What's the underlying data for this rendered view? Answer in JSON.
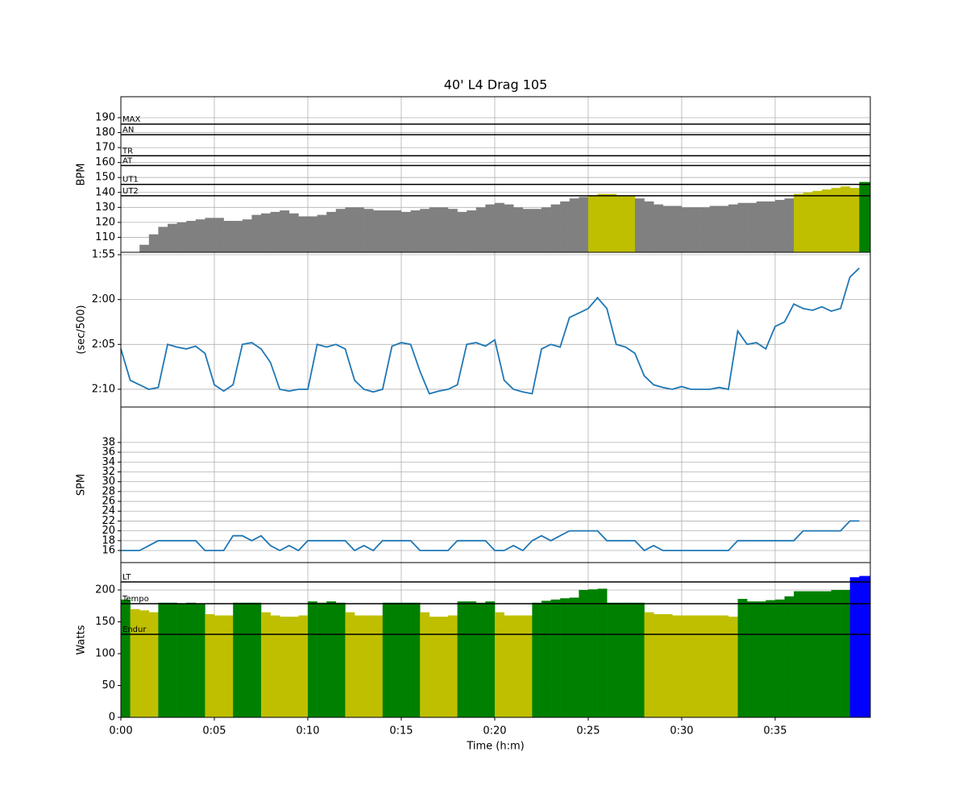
{
  "chart_data": [
    {
      "type": "bar",
      "title": "40' L4 Drag 105",
      "ylabel": "BPM",
      "color": "#808080",
      "x": [
        0,
        0.5,
        1,
        1.5,
        2,
        2.5,
        3,
        3.5,
        4,
        4.5,
        5,
        5.5,
        6,
        6.5,
        7,
        7.5,
        8,
        8.5,
        9,
        9.5,
        10,
        10.5,
        11,
        11.5,
        12,
        12.5,
        13,
        13.5,
        14,
        14.5,
        15,
        15.5,
        16,
        16.5,
        17,
        17.5,
        18,
        18.5,
        19,
        19.5,
        20,
        20.5,
        21,
        21.5,
        22,
        22.5,
        23,
        23.5,
        24,
        24.5,
        25,
        25.5,
        26,
        26.5,
        27,
        27.5,
        28,
        28.5,
        29,
        29.5,
        30,
        30.5,
        31,
        31.5,
        32,
        32.5,
        33,
        33.5,
        34,
        34.5,
        35,
        35.5,
        36,
        36.5,
        37,
        37.5,
        38,
        38.5,
        39,
        39.5
      ],
      "values": [
        100,
        100,
        105,
        112,
        117,
        119,
        120,
        121,
        122,
        123,
        123,
        121,
        121,
        122,
        125,
        126,
        127,
        128,
        126,
        124,
        124,
        125,
        127,
        129,
        130,
        130,
        129,
        128,
        128,
        128,
        127,
        128,
        129,
        130,
        130,
        129,
        127,
        128,
        130,
        132,
        133,
        132,
        130,
        129,
        129,
        130,
        132,
        134,
        136,
        137,
        138,
        139,
        139,
        138,
        138,
        136,
        134,
        132,
        131,
        131,
        130,
        130,
        130,
        131,
        131,
        132,
        133,
        133,
        134,
        134,
        135,
        136,
        139,
        140,
        141,
        142,
        143,
        144,
        143,
        147
      ],
      "ylim": [
        100,
        204
      ],
      "yticks": [
        110,
        120,
        130,
        140,
        150,
        160,
        170,
        180,
        190
      ],
      "grid": true,
      "zones": [
        {
          "name": "UT2",
          "value": 137.8,
          "color": "#bfbf00"
        },
        {
          "name": "UT1",
          "value": 145.4,
          "color": "#008000"
        },
        {
          "name": "AT",
          "value": 158,
          "color": "#0000ff"
        },
        {
          "name": "TR",
          "value": 164.5,
          "color": "#800080"
        },
        {
          "name": "AN",
          "value": 178.6,
          "color": "#ff8c00"
        },
        {
          "name": "MAX",
          "value": 185.7,
          "color": "#ff0000"
        }
      ]
    },
    {
      "type": "line",
      "ylabel": "(sec/500)",
      "color": "#1f77b4",
      "x": [
        0,
        0.5,
        1,
        1.5,
        2,
        2.5,
        3,
        3.5,
        4,
        4.5,
        5,
        5.5,
        6,
        6.5,
        7,
        7.5,
        8,
        8.5,
        9,
        9.5,
        10,
        10.5,
        11,
        11.5,
        12,
        12.5,
        13,
        13.5,
        14,
        14.5,
        15,
        15.5,
        16,
        16.5,
        17,
        17.5,
        18,
        18.5,
        19,
        19.5,
        20,
        20.5,
        21,
        21.5,
        22,
        22.5,
        23,
        23.5,
        24,
        24.5,
        25,
        25.5,
        26,
        26.5,
        27,
        27.5,
        28,
        28.5,
        29,
        29.5,
        30,
        30.5,
        31,
        31.5,
        32,
        32.5,
        33,
        33.5,
        34,
        34.5,
        35,
        35.5,
        36,
        36.5,
        37,
        37.5,
        38,
        38.5,
        39,
        39.5
      ],
      "values": [
        125.5,
        129,
        129.5,
        130,
        129.8,
        125,
        125.3,
        125.5,
        125.2,
        126,
        129.5,
        130.2,
        129.5,
        125,
        124.8,
        125.5,
        127,
        130,
        130.2,
        130,
        130,
        125,
        125.3,
        125,
        125.5,
        129,
        130,
        130.3,
        130,
        125.2,
        124.8,
        125,
        128,
        130.5,
        130.2,
        130,
        129.5,
        125,
        124.8,
        125.2,
        124.5,
        129,
        130,
        130.3,
        130.5,
        125.5,
        125,
        125.3,
        122,
        121.5,
        121,
        119.8,
        121,
        125,
        125.3,
        126,
        128.5,
        129.5,
        129.8,
        130,
        129.7,
        130,
        130,
        130,
        129.8,
        130,
        123.5,
        125,
        124.8,
        125.5,
        123,
        122.5,
        120.5,
        121,
        121.2,
        120.8,
        121.3,
        121,
        117.5,
        116.5
      ],
      "ylim": [
        131.98,
        114.73
      ],
      "yticks": [
        {
          "value": 115,
          "label": "1:55"
        },
        {
          "value": 120,
          "label": "2:00"
        },
        {
          "value": 125,
          "label": "2:05"
        },
        {
          "value": 130,
          "label": "2:10"
        }
      ],
      "grid": true
    },
    {
      "type": "line",
      "ylabel": "SPM",
      "color": "#1f77b4",
      "x": [
        0,
        0.5,
        1,
        1.5,
        2,
        2.5,
        3,
        3.5,
        4,
        4.5,
        5,
        5.5,
        6,
        6.5,
        7,
        7.5,
        8,
        8.5,
        9,
        9.5,
        10,
        10.5,
        11,
        11.5,
        12,
        12.5,
        13,
        13.5,
        14,
        14.5,
        15,
        15.5,
        16,
        16.5,
        17,
        17.5,
        18,
        18.5,
        19,
        19.5,
        20,
        20.5,
        21,
        21.5,
        22,
        22.5,
        23,
        23.5,
        24,
        24.5,
        25,
        25.5,
        26,
        26.5,
        27,
        27.5,
        28,
        28.5,
        29,
        29.5,
        30,
        30.5,
        31,
        31.5,
        32,
        32.5,
        33,
        33.5,
        34,
        34.5,
        35,
        35.5,
        36,
        36.5,
        37,
        37.5,
        38,
        38.5,
        39,
        39.5
      ],
      "values": [
        16,
        16,
        16,
        17,
        18,
        18,
        18,
        18,
        18,
        16,
        16,
        16,
        19,
        19,
        18,
        19,
        17,
        16,
        17,
        16,
        18,
        18,
        18,
        18,
        18,
        16,
        17,
        16,
        18,
        18,
        18,
        18,
        16,
        16,
        16,
        16,
        18,
        18,
        18,
        18,
        16,
        16,
        17,
        16,
        18,
        19,
        18,
        19,
        20,
        20,
        20,
        20,
        18,
        18,
        18,
        18,
        16,
        17,
        16,
        16,
        16,
        16,
        16,
        16,
        16,
        16,
        18,
        18,
        18,
        18,
        18,
        18,
        18,
        20,
        20,
        20,
        20,
        20,
        22,
        22
      ],
      "ylim": [
        13.54,
        45.2
      ],
      "yticks": [
        16,
        18,
        20,
        22,
        24,
        26,
        28,
        30,
        32,
        34,
        36,
        38
      ],
      "grid": true
    },
    {
      "type": "bar",
      "ylabel": "Watts",
      "xlabel": "Time (h:m)",
      "color": "#808080",
      "x": [
        0,
        0.5,
        1,
        1.5,
        2,
        2.5,
        3,
        3.5,
        4,
        4.5,
        5,
        5.5,
        6,
        6.5,
        7,
        7.5,
        8,
        8.5,
        9,
        9.5,
        10,
        10.5,
        11,
        11.5,
        12,
        12.5,
        13,
        13.5,
        14,
        14.5,
        15,
        15.5,
        16,
        16.5,
        17,
        17.5,
        18,
        18.5,
        19,
        19.5,
        20,
        20.5,
        21,
        21.5,
        22,
        22.5,
        23,
        23.5,
        24,
        24.5,
        25,
        25.5,
        26,
        26.5,
        27,
        27.5,
        28,
        28.5,
        29,
        29.5,
        30,
        30.5,
        31,
        31.5,
        32,
        32.5,
        33,
        33.5,
        34,
        34.5,
        35,
        35.5,
        36,
        36.5,
        37,
        37.5,
        38,
        38.5,
        39,
        39.5
      ],
      "values": [
        185,
        170,
        168,
        165,
        180,
        180,
        179,
        180,
        179,
        162,
        160,
        160,
        180,
        180,
        180,
        165,
        160,
        158,
        158,
        160,
        182,
        180,
        182,
        180,
        165,
        160,
        160,
        160,
        180,
        180,
        180,
        180,
        165,
        158,
        158,
        160,
        182,
        182,
        180,
        182,
        165,
        160,
        160,
        160,
        180,
        183,
        185,
        187,
        188,
        200,
        201,
        202,
        180,
        180,
        180,
        180,
        165,
        162,
        162,
        160,
        160,
        160,
        160,
        160,
        160,
        158,
        186,
        182,
        182,
        184,
        185,
        190,
        198,
        198,
        198,
        198,
        200,
        200,
        220,
        222
      ],
      "ylim": [
        0,
        243
      ],
      "yticks": [
        0,
        50,
        100,
        150,
        200
      ],
      "grid": true,
      "xlim": [
        0,
        40.09
      ],
      "xticks": [
        {
          "value": 0,
          "label": "0:00"
        },
        {
          "value": 5,
          "label": "0:05"
        },
        {
          "value": 10,
          "label": "0:10"
        },
        {
          "value": 15,
          "label": "0:15"
        },
        {
          "value": 20,
          "label": "0:20"
        },
        {
          "value": 25,
          "label": "0:25"
        },
        {
          "value": 30,
          "label": "0:30"
        },
        {
          "value": 35,
          "label": "0:35"
        }
      ],
      "zones": [
        {
          "name": "Endur",
          "value": 130.4,
          "color": "#bfbf00"
        },
        {
          "name": "Tempo",
          "value": 178.5,
          "color": "#008000"
        },
        {
          "name": "LT",
          "value": 212.7,
          "color": "#0000ff"
        }
      ]
    }
  ]
}
